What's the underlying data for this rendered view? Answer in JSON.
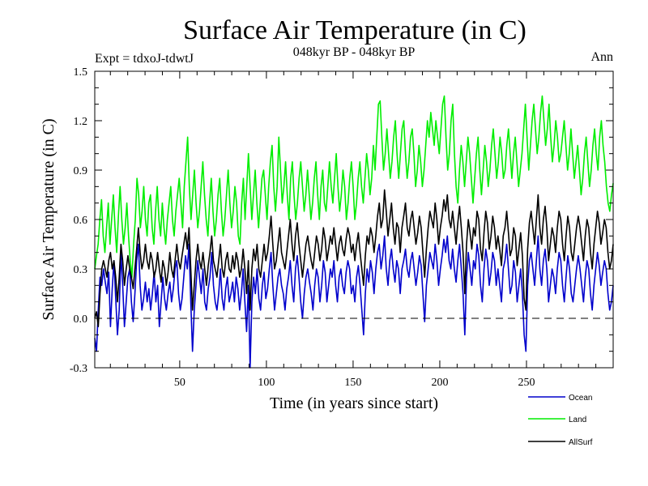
{
  "chart_data": {
    "type": "line",
    "title": "Surface Air Temperature (in C)",
    "subtitle": "048kyr BP - 048kyr BP",
    "left_label": "Expt = tdxoJ-tdwtJ",
    "right_label": "Ann",
    "xlabel": "Time (in years since start)",
    "ylabel": "Surface Air Temperature (in C)",
    "xlim": [
      1,
      300
    ],
    "ylim": [
      -0.3,
      1.5
    ],
    "x_ticks": [
      50,
      100,
      150,
      200,
      250
    ],
    "y_ticks": [
      -0.3,
      0.0,
      0.3,
      0.6,
      0.9,
      1.2,
      1.5
    ],
    "y_tick_labels": [
      "-0.3",
      "0.0",
      "0.3",
      "0.6",
      "0.9",
      "1.2",
      "1.5"
    ],
    "reference_line": 0.0,
    "legend_position": "bottom-right",
    "series": [
      {
        "name": "Ocean",
        "color": "#0000cc",
        "values": [
          -0.12,
          -0.2,
          0.05,
          0.25,
          0.2,
          0.3,
          0.22,
          0.15,
          0.28,
          -0.05,
          0.18,
          0.35,
          0.12,
          -0.1,
          0.05,
          0.4,
          0.2,
          -0.05,
          0.1,
          0.25,
          0.3,
          0.1,
          -0.02,
          0.15,
          0.35,
          0.45,
          0.2,
          0.05,
          0.12,
          0.22,
          0.1,
          0.18,
          0.05,
          0.15,
          0.28,
          0.1,
          0.2,
          -0.05,
          0.1,
          0.25,
          0.12,
          0.05,
          0.15,
          0.22,
          0.1,
          0.18,
          0.3,
          0.35,
          0.15,
          0.05,
          0.12,
          0.25,
          0.38,
          0.3,
          0.45,
          0.1,
          -0.2,
          0.05,
          0.2,
          0.35,
          0.25,
          0.15,
          0.3,
          0.1,
          0.05,
          0.18,
          0.25,
          0.4,
          0.2,
          0.1,
          0.05,
          0.15,
          0.3,
          0.12,
          0.05,
          0.18,
          0.25,
          0.1,
          0.15,
          0.22,
          0.1,
          0.25,
          0.18,
          0.05,
          0.15,
          0.3,
          0.1,
          -0.08,
          0.2,
          -0.3,
          0.1,
          0.25,
          0.15,
          0.3,
          0.12,
          0.05,
          0.2,
          0.28,
          0.12,
          0.18,
          0.3,
          0.4,
          0.2,
          0.05,
          0.15,
          0.25,
          0.3,
          0.2,
          0.15,
          0.05,
          0.18,
          0.25,
          0.35,
          0.2,
          0.1,
          0.3,
          0.38,
          0.25,
          0.1,
          0.0,
          0.15,
          0.25,
          0.3,
          0.22,
          0.15,
          0.05,
          0.2,
          0.3,
          0.25,
          0.1,
          0.2,
          0.35,
          0.28,
          0.1,
          0.2,
          0.3,
          0.25,
          0.35,
          0.2,
          0.1,
          0.25,
          0.3,
          0.2,
          0.15,
          0.28,
          0.35,
          0.3,
          0.15,
          0.2,
          0.1,
          0.25,
          0.32,
          0.2,
          0.05,
          -0.1,
          0.15,
          0.3,
          0.22,
          0.35,
          0.28,
          0.15,
          0.3,
          0.4,
          0.45,
          0.3,
          0.38,
          0.5,
          0.3,
          0.2,
          0.35,
          0.42,
          0.3,
          0.22,
          0.35,
          0.3,
          0.15,
          0.3,
          0.35,
          0.42,
          0.3,
          0.25,
          0.35,
          0.4,
          0.3,
          0.2,
          0.28,
          0.38,
          0.32,
          0.15,
          -0.02,
          0.2,
          0.3,
          0.4,
          0.35,
          0.3,
          0.45,
          0.35,
          0.2,
          0.3,
          0.38,
          0.48,
          0.4,
          0.5,
          0.35,
          0.3,
          0.42,
          0.3,
          0.22,
          0.35,
          0.45,
          0.3,
          0.15,
          -0.1,
          0.25,
          0.4,
          0.3,
          0.2,
          0.35,
          0.3,
          0.45,
          0.38,
          0.2,
          0.1,
          0.3,
          0.42,
          0.35,
          0.2,
          0.28,
          0.4,
          0.35,
          0.2,
          0.3,
          0.2,
          0.1,
          0.3,
          0.35,
          0.45,
          0.3,
          0.15,
          0.2,
          0.35,
          0.28,
          0.1,
          0.2,
          0.3,
          0.15,
          -0.1,
          -0.2,
          0.2,
          0.35,
          0.4,
          0.3,
          0.2,
          0.35,
          0.5,
          0.3,
          0.2,
          0.35,
          0.42,
          0.3,
          0.1,
          0.2,
          0.3,
          0.25,
          0.15,
          0.3,
          0.4,
          0.35,
          0.2,
          0.1,
          0.25,
          0.38,
          0.3,
          0.15,
          0.1,
          0.2,
          0.3,
          0.38,
          0.3,
          0.2,
          0.1,
          0.25,
          0.35,
          0.3,
          0.15,
          0.05,
          0.2,
          0.3,
          0.4,
          0.32,
          0.2,
          0.28,
          0.35,
          0.3,
          0.15,
          0.05,
          0.1,
          0.2
        ]
      },
      {
        "name": "Land",
        "color": "#00ee00",
        "values": [
          0.3,
          0.38,
          0.45,
          0.6,
          0.72,
          0.5,
          0.4,
          0.55,
          0.7,
          0.45,
          0.6,
          0.75,
          0.55,
          0.4,
          0.62,
          0.8,
          0.6,
          0.45,
          0.55,
          0.7,
          0.5,
          0.35,
          0.25,
          0.45,
          0.6,
          0.85,
          0.75,
          0.55,
          0.65,
          0.8,
          0.6,
          0.5,
          0.7,
          0.75,
          0.55,
          0.45,
          0.65,
          0.8,
          0.6,
          0.5,
          0.7,
          0.55,
          0.45,
          0.6,
          0.7,
          0.8,
          0.6,
          0.5,
          0.65,
          0.75,
          0.85,
          0.7,
          0.55,
          0.8,
          0.95,
          1.1,
          0.8,
          0.6,
          0.75,
          0.9,
          0.7,
          0.55,
          0.65,
          0.8,
          0.95,
          0.75,
          0.6,
          0.5,
          0.7,
          0.85,
          0.65,
          0.5,
          0.6,
          0.75,
          0.85,
          0.65,
          0.5,
          0.6,
          0.75,
          0.9,
          0.7,
          0.55,
          0.65,
          0.8,
          0.7,
          0.5,
          0.45,
          0.7,
          0.85,
          0.6,
          0.8,
          1.0,
          0.8,
          0.6,
          0.75,
          0.9,
          0.7,
          0.55,
          0.7,
          0.85,
          0.9,
          0.75,
          0.6,
          0.8,
          0.95,
          1.05,
          0.8,
          0.65,
          0.8,
          1.1,
          0.9,
          0.7,
          0.8,
          0.95,
          0.75,
          0.6,
          0.85,
          0.95,
          0.75,
          0.6,
          0.7,
          0.85,
          0.95,
          0.8,
          0.65,
          0.75,
          0.9,
          0.75,
          0.6,
          0.7,
          0.85,
          0.95,
          0.75,
          0.6,
          0.8,
          0.9,
          0.7,
          0.65,
          0.8,
          0.95,
          0.8,
          0.7,
          0.85,
          1.0,
          0.8,
          0.65,
          0.75,
          0.9,
          0.8,
          0.6,
          0.7,
          0.85,
          0.95,
          0.8,
          0.6,
          0.7,
          0.85,
          0.95,
          0.8,
          0.7,
          0.85,
          1.0,
          0.9,
          0.75,
          0.85,
          1.05,
          0.9,
          1.1,
          1.3,
          1.32,
          1.1,
          0.9,
          1.0,
          1.15,
          1.0,
          0.85,
          0.95,
          1.1,
          1.2,
          1.0,
          0.85,
          1.0,
          1.15,
          1.2,
          1.0,
          0.85,
          0.95,
          1.1,
          1.15,
          1.0,
          0.8,
          0.9,
          1.05,
          0.95,
          0.8,
          0.9,
          1.05,
          1.2,
          1.1,
          1.25,
          1.15,
          1.05,
          1.2,
          1.1,
          1.0,
          1.15,
          1.3,
          1.35,
          1.1,
          0.9,
          1.0,
          1.2,
          1.3,
          1.0,
          0.8,
          0.7,
          0.9,
          1.05,
          0.95,
          0.8,
          0.95,
          1.1,
          1.0,
          0.85,
          0.7,
          0.85,
          1.0,
          1.1,
          0.9,
          0.75,
          0.9,
          1.05,
          0.95,
          0.8,
          0.9,
          1.05,
          1.15,
          1.0,
          0.85,
          0.95,
          1.1,
          1.0,
          0.85,
          0.9,
          1.05,
          1.15,
          1.0,
          0.85,
          1.0,
          1.1,
          0.95,
          0.8,
          0.9,
          1.0,
          1.15,
          1.3,
          1.1,
          0.9,
          1.05,
          1.2,
          1.3,
          1.15,
          1.0,
          1.1,
          1.25,
          1.35,
          1.2,
          1.05,
          1.15,
          1.3,
          1.1,
          0.95,
          1.05,
          1.2,
          1.1,
          0.95,
          1.0,
          1.1,
          1.2,
          1.05,
          0.9,
          1.0,
          1.15,
          1.0,
          0.85,
          0.95,
          1.05,
          0.9,
          0.75,
          0.85,
          1.0,
          1.1,
          0.95,
          0.8,
          0.9,
          1.05,
          1.15,
          1.0,
          0.9,
          1.1,
          1.2,
          1.05,
          0.95,
          0.8,
          0.7,
          0.65,
          0.75,
          0.82
        ]
      },
      {
        "name": "AllSurf",
        "color": "#000000",
        "values": [
          0.0,
          0.04,
          -0.05,
          0.15,
          0.3,
          0.35,
          0.3,
          0.25,
          0.35,
          0.4,
          0.3,
          0.35,
          0.25,
          0.1,
          0.25,
          0.45,
          0.35,
          0.2,
          0.3,
          0.38,
          0.3,
          0.25,
          0.18,
          0.3,
          0.42,
          0.55,
          0.4,
          0.3,
          0.35,
          0.45,
          0.35,
          0.3,
          0.4,
          0.35,
          0.25,
          0.3,
          0.4,
          0.3,
          0.22,
          0.35,
          0.3,
          0.2,
          0.28,
          0.4,
          0.3,
          0.25,
          0.35,
          0.45,
          0.35,
          0.3,
          0.38,
          0.45,
          0.52,
          0.42,
          0.55,
          0.3,
          0.05,
          0.2,
          0.35,
          0.45,
          0.35,
          0.3,
          0.4,
          0.3,
          0.2,
          0.32,
          0.4,
          0.5,
          0.35,
          0.3,
          0.25,
          0.35,
          0.45,
          0.3,
          0.25,
          0.35,
          0.4,
          0.3,
          0.28,
          0.38,
          0.3,
          0.4,
          0.35,
          0.25,
          0.3,
          0.42,
          0.3,
          0.15,
          0.35,
          0.05,
          0.3,
          0.42,
          0.35,
          0.45,
          0.3,
          0.25,
          0.35,
          0.45,
          0.35,
          0.4,
          0.5,
          0.62,
          0.45,
          0.3,
          0.35,
          0.45,
          0.55,
          0.4,
          0.35,
          0.3,
          0.4,
          0.5,
          0.6,
          0.45,
          0.35,
          0.5,
          0.58,
          0.45,
          0.35,
          0.25,
          0.35,
          0.45,
          0.5,
          0.42,
          0.35,
          0.3,
          0.4,
          0.5,
          0.45,
          0.35,
          0.42,
          0.55,
          0.48,
          0.35,
          0.42,
          0.5,
          0.45,
          0.55,
          0.45,
          0.35,
          0.45,
          0.5,
          0.42,
          0.38,
          0.48,
          0.55,
          0.5,
          0.4,
          0.45,
          0.35,
          0.45,
          0.52,
          0.4,
          0.3,
          0.2,
          0.38,
          0.5,
          0.45,
          0.55,
          0.5,
          0.4,
          0.5,
          0.62,
          0.7,
          0.55,
          0.6,
          0.78,
          0.65,
          0.5,
          0.6,
          0.7,
          0.55,
          0.45,
          0.58,
          0.55,
          0.4,
          0.55,
          0.62,
          0.7,
          0.55,
          0.5,
          0.6,
          0.65,
          0.55,
          0.45,
          0.52,
          0.62,
          0.55,
          0.4,
          0.25,
          0.42,
          0.55,
          0.65,
          0.6,
          0.55,
          0.7,
          0.6,
          0.45,
          0.55,
          0.62,
          0.72,
          0.65,
          0.75,
          0.6,
          0.55,
          0.65,
          0.55,
          0.45,
          0.58,
          0.68,
          0.55,
          0.4,
          0.15,
          0.45,
          0.6,
          0.52,
          0.42,
          0.55,
          0.5,
          0.65,
          0.6,
          0.42,
          0.35,
          0.52,
          0.65,
          0.58,
          0.42,
          0.5,
          0.62,
          0.55,
          0.42,
          0.5,
          0.42,
          0.32,
          0.5,
          0.55,
          0.65,
          0.52,
          0.38,
          0.42,
          0.55,
          0.5,
          0.32,
          0.42,
          0.52,
          0.38,
          0.12,
          0.05,
          0.42,
          0.58,
          0.65,
          0.55,
          0.45,
          0.6,
          0.75,
          0.55,
          0.45,
          0.6,
          0.68,
          0.55,
          0.35,
          0.45,
          0.55,
          0.5,
          0.4,
          0.55,
          0.65,
          0.6,
          0.45,
          0.35,
          0.5,
          0.62,
          0.55,
          0.4,
          0.35,
          0.45,
          0.55,
          0.62,
          0.55,
          0.45,
          0.35,
          0.5,
          0.6,
          0.55,
          0.4,
          0.3,
          0.45,
          0.55,
          0.65,
          0.58,
          0.45,
          0.52,
          0.6,
          0.55,
          0.4,
          0.3,
          0.35,
          0.45
        ]
      }
    ]
  }
}
